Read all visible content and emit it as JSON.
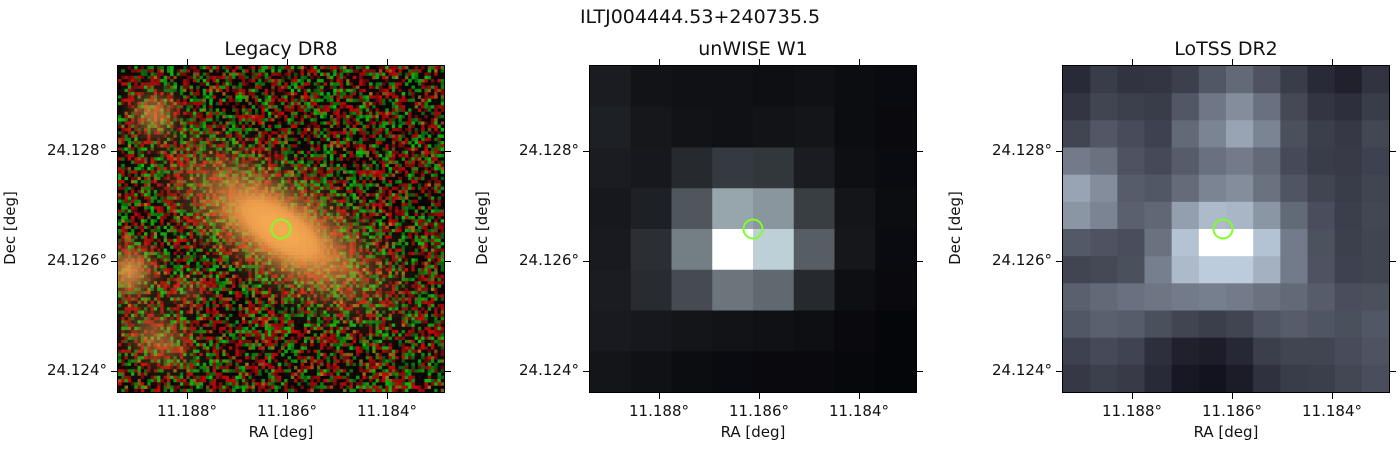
{
  "figure": {
    "title": "ILTJ004444.53+240735.5"
  },
  "panels": [
    {
      "title": "Legacy DR8",
      "xlabel": "RA [deg]",
      "ylabel": "Dec [deg]",
      "xticks": [
        "11.188°",
        "11.186°",
        "11.184°"
      ],
      "yticks": [
        "24.128°",
        "24.126°",
        "24.124°"
      ]
    },
    {
      "title": "unWISE W1",
      "xlabel": "RA [deg]",
      "ylabel": "Dec [deg]",
      "xticks": [
        "11.188°",
        "11.186°",
        "11.184°"
      ],
      "yticks": [
        "24.128°",
        "24.126°",
        "24.124°"
      ]
    },
    {
      "title": "LoTSS DR2",
      "xlabel": "RA [deg]",
      "ylabel": "Dec [deg]",
      "xticks": [
        "11.188°",
        "11.186°",
        "11.184°"
      ],
      "yticks": [
        "24.128°",
        "24.126°",
        "24.124°"
      ]
    }
  ],
  "marker": {
    "shape": "circle",
    "color": "#7fff2a"
  },
  "colors": {
    "legacy_galaxy": "#e89a4a",
    "wise_peak": "#ffffff",
    "lotss_peak": "#ffffff"
  }
}
